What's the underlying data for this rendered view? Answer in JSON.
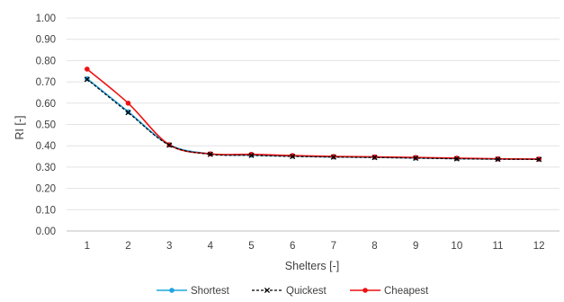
{
  "chart_data": {
    "type": "line",
    "xlabel": "Shelters [-]",
    "ylabel": "RI [-]",
    "ylim": [
      0,
      1
    ],
    "ytick_step": 0.1,
    "ytick_labels": [
      "0.00",
      "0.10",
      "0.20",
      "0.30",
      "0.40",
      "0.50",
      "0.60",
      "0.70",
      "0.80",
      "0.90",
      "1.00"
    ],
    "categories": [
      "1",
      "2",
      "3",
      "4",
      "5",
      "6",
      "7",
      "8",
      "9",
      "10",
      "11",
      "12"
    ],
    "grid": true,
    "legend_position": "bottom",
    "series": [
      {
        "name": "Shortest",
        "color": "#1fa5e0",
        "marker": "circle",
        "line": "solid",
        "values": [
          0.715,
          0.56,
          0.405,
          0.362,
          0.356,
          0.352,
          0.348,
          0.346,
          0.343,
          0.34,
          0.338,
          0.337
        ]
      },
      {
        "name": "Quickest",
        "color": "#000000",
        "marker": "x",
        "line": "dashed",
        "values": [
          0.712,
          0.556,
          0.403,
          0.36,
          0.355,
          0.35,
          0.347,
          0.345,
          0.342,
          0.339,
          0.337,
          0.336
        ]
      },
      {
        "name": "Cheapest",
        "color": "#ee1111",
        "marker": "circle",
        "line": "solid",
        "values": [
          0.76,
          0.6,
          0.405,
          0.362,
          0.36,
          0.354,
          0.35,
          0.348,
          0.345,
          0.342,
          0.339,
          0.338
        ]
      }
    ]
  }
}
